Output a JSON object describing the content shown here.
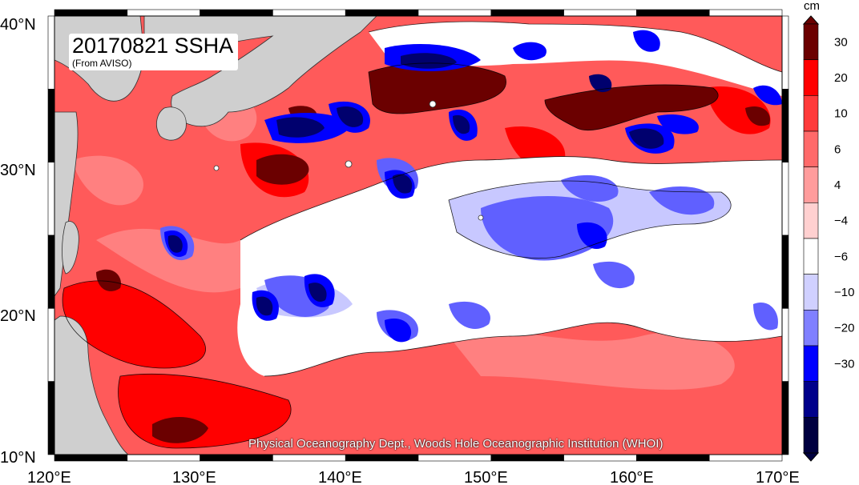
{
  "map": {
    "title": "20170821 SSHA",
    "subtitle": "(From AVISO)",
    "credit": "Physical Oceanography Dept., Woods Hole Oceanographic Institution (WHOI)",
    "lat_labels": [
      "40°N",
      "30°N",
      "20°N",
      "10°N"
    ],
    "lon_labels": [
      "120°E",
      "130°E",
      "140°E",
      "150°E",
      "160°E",
      "170°E"
    ],
    "extent": {
      "lon_min": 120,
      "lon_max": 170,
      "lat_min": 10,
      "lat_max": 40
    }
  },
  "colorbar": {
    "unit": "cm",
    "labels": [
      "30",
      "20",
      "10",
      "6",
      "4",
      "−4",
      "−6",
      "−10",
      "−20",
      "−30"
    ],
    "levels": [
      {
        "min": 30,
        "color": "#6b0000"
      },
      {
        "min": 20,
        "color": "#ff0000"
      },
      {
        "min": 10,
        "color": "#ff3a3a"
      },
      {
        "min": 6,
        "color": "#ff6a6a"
      },
      {
        "min": 4,
        "color": "#ff9c9c"
      },
      {
        "min": -4,
        "color": "#ffd0d0"
      },
      {
        "min": -6,
        "color": "#ffffff"
      },
      {
        "min": -10,
        "color": "#d0d0ff"
      },
      {
        "min": -20,
        "color": "#8080ff"
      },
      {
        "min": -30,
        "color": "#0000ff"
      },
      {
        "min": -40,
        "color": "#00008b"
      },
      {
        "min": -99,
        "color": "#000040"
      }
    ]
  },
  "colors": {
    "land": "#cfcfcf",
    "background_anomaly": "#ff5a5a",
    "frame": "#000000"
  }
}
